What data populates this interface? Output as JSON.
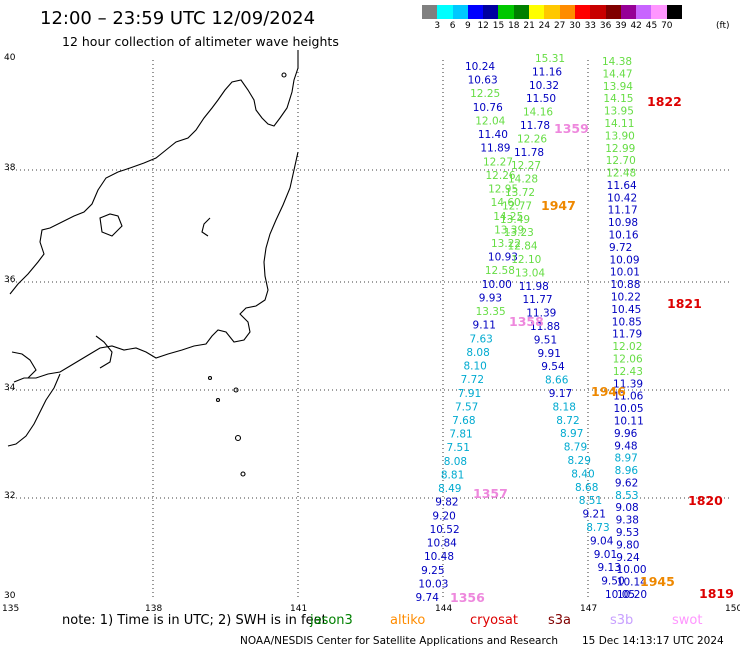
{
  "title": "12:00 – 23:59 UTC 12/09/2024",
  "subtitle": "12 hour collection of altimeter wave heights",
  "colorbar": {
    "colors": [
      "#808080",
      "#00ffff",
      "#00c8ff",
      "#0000ff",
      "#0000a0",
      "#00c800",
      "#008000",
      "#ffff00",
      "#ffc800",
      "#ff8c00",
      "#ff0000",
      "#c80000",
      "#800000",
      "#960096",
      "#c864ff",
      "#ff96ff",
      "#000000"
    ],
    "ticks": [
      "3",
      "6",
      "9",
      "12",
      "15",
      "18",
      "21",
      "24",
      "27",
      "30",
      "33",
      "36",
      "39",
      "42",
      "45",
      "70"
    ],
    "unit": "(ft)"
  },
  "map": {
    "lat_labels": [
      "40",
      "38",
      "36",
      "34",
      "32",
      "30"
    ],
    "lon_labels": [
      "135",
      "138",
      "141",
      "144",
      "147",
      "150"
    ]
  },
  "tracks": [
    {
      "name": "jason3",
      "color": "#00aa00",
      "obs": [
        {
          "v": "10.24",
          "c": "#0000c0"
        },
        {
          "v": "10.63",
          "c": "#0000c0"
        },
        {
          "v": "12.25",
          "c": "#66dd44"
        },
        {
          "v": "10.76",
          "c": "#0000c0"
        },
        {
          "v": "12.04",
          "c": "#66dd44"
        },
        {
          "v": "11.40",
          "c": "#0000c0"
        },
        {
          "v": "11.89",
          "c": "#0000c0"
        },
        {
          "v": "12.27",
          "c": "#66dd44"
        },
        {
          "v": "12.26",
          "c": "#66dd44"
        },
        {
          "v": "12.95",
          "c": "#66dd44"
        },
        {
          "v": "14.60",
          "c": "#66dd44"
        },
        {
          "v": "14.25",
          "c": "#66dd44"
        },
        {
          "v": "13.39",
          "c": "#66dd44"
        },
        {
          "v": "13.22",
          "c": "#66dd44"
        },
        {
          "v": "10.93",
          "c": "#0000c0"
        },
        {
          "v": "12.58",
          "c": "#66dd44"
        },
        {
          "v": "10.00",
          "c": "#0000c0"
        },
        {
          "v": "9.93",
          "c": "#0000c0"
        },
        {
          "v": "13.35",
          "c": "#66dd44"
        },
        {
          "v": "9.11",
          "c": "#0000c0"
        },
        {
          "v": "7.63",
          "c": "#00aad0"
        },
        {
          "v": "8.08",
          "c": "#00aad0"
        },
        {
          "v": "8.10",
          "c": "#00aad0"
        },
        {
          "v": "7.72",
          "c": "#00aad0"
        },
        {
          "v": "7.91",
          "c": "#00aad0"
        },
        {
          "v": "7.57",
          "c": "#00aad0"
        },
        {
          "v": "7.68",
          "c": "#00aad0"
        },
        {
          "v": "7.81",
          "c": "#00aad0"
        },
        {
          "v": "7.51",
          "c": "#00aad0"
        },
        {
          "v": "8.08",
          "c": "#00aad0"
        },
        {
          "v": "8.81",
          "c": "#00aad0"
        },
        {
          "v": "8.49",
          "c": "#00aad0"
        },
        {
          "v": "9.82",
          "c": "#0000c0"
        },
        {
          "v": "9.20",
          "c": "#0000c0"
        },
        {
          "v": "10.52",
          "c": "#0000c0"
        },
        {
          "v": "10.84",
          "c": "#0000c0"
        },
        {
          "v": "10.48",
          "c": "#0000c0"
        },
        {
          "v": "9.25",
          "c": "#0000c0"
        },
        {
          "v": "10.03",
          "c": "#0000c0"
        },
        {
          "v": "9.74",
          "c": "#0000c0"
        }
      ]
    },
    {
      "name": "altika",
      "color": "#00aa00",
      "obs": [
        {
          "v": "15.31",
          "c": "#66dd44"
        },
        {
          "v": "11.16",
          "c": "#0000c0"
        },
        {
          "v": "10.32",
          "c": "#0000c0"
        },
        {
          "v": "11.50",
          "c": "#0000c0"
        },
        {
          "v": "14.16",
          "c": "#66dd44"
        },
        {
          "v": "11.78",
          "c": "#0000c0"
        },
        {
          "v": "12.26",
          "c": "#66dd44"
        },
        {
          "v": "11.78",
          "c": "#0000c0"
        },
        {
          "v": "12.27",
          "c": "#66dd44"
        },
        {
          "v": "14.28",
          "c": "#66dd44"
        },
        {
          "v": "13.72",
          "c": "#66dd44"
        },
        {
          "v": "12.77",
          "c": "#66dd44"
        },
        {
          "v": "13.49",
          "c": "#66dd44"
        },
        {
          "v": "13.23",
          "c": "#66dd44"
        },
        {
          "v": "12.84",
          "c": "#66dd44"
        },
        {
          "v": "12.10",
          "c": "#66dd44"
        },
        {
          "v": "13.04",
          "c": "#66dd44"
        },
        {
          "v": "11.98",
          "c": "#0000c0"
        },
        {
          "v": "11.77",
          "c": "#0000c0"
        },
        {
          "v": "11.39",
          "c": "#0000c0"
        },
        {
          "v": "11.88",
          "c": "#0000c0"
        },
        {
          "v": "9.51",
          "c": "#0000c0"
        },
        {
          "v": "9.91",
          "c": "#0000c0"
        },
        {
          "v": "9.54",
          "c": "#0000c0"
        },
        {
          "v": "8.66",
          "c": "#00aad0"
        },
        {
          "v": "9.17",
          "c": "#0000c0"
        },
        {
          "v": "8.18",
          "c": "#00aad0"
        },
        {
          "v": "8.72",
          "c": "#00aad0"
        },
        {
          "v": "8.97",
          "c": "#00aad0"
        },
        {
          "v": "8.79",
          "c": "#00aad0"
        },
        {
          "v": "8.29",
          "c": "#00aad0"
        },
        {
          "v": "8.40",
          "c": "#00aad0"
        },
        {
          "v": "8.68",
          "c": "#00aad0"
        },
        {
          "v": "8.51",
          "c": "#00aad0"
        },
        {
          "v": "9.21",
          "c": "#0000c0"
        },
        {
          "v": "8.73",
          "c": "#00aad0"
        },
        {
          "v": "9.04",
          "c": "#0000c0"
        },
        {
          "v": "9.01",
          "c": "#0000c0"
        },
        {
          "v": "9.13",
          "c": "#0000c0"
        },
        {
          "v": "9.50",
          "c": "#0000c0"
        },
        {
          "v": "10.05",
          "c": "#0000c0"
        }
      ]
    },
    {
      "name": "cryosat",
      "color": "#00aa00",
      "obs": [
        {
          "v": "14.38",
          "c": "#66dd44"
        },
        {
          "v": "14.47",
          "c": "#66dd44"
        },
        {
          "v": "13.94",
          "c": "#66dd44"
        },
        {
          "v": "14.15",
          "c": "#66dd44"
        },
        {
          "v": "13.95",
          "c": "#66dd44"
        },
        {
          "v": "14.11",
          "c": "#66dd44"
        },
        {
          "v": "13.90",
          "c": "#66dd44"
        },
        {
          "v": "12.99",
          "c": "#66dd44"
        },
        {
          "v": "12.70",
          "c": "#66dd44"
        },
        {
          "v": "12.48",
          "c": "#66dd44"
        },
        {
          "v": "11.64",
          "c": "#0000c0"
        },
        {
          "v": "10.42",
          "c": "#0000c0"
        },
        {
          "v": "11.17",
          "c": "#0000c0"
        },
        {
          "v": "10.98",
          "c": "#0000c0"
        },
        {
          "v": "10.16",
          "c": "#0000c0"
        },
        {
          "v": "9.72",
          "c": "#0000c0"
        },
        {
          "v": "10.09",
          "c": "#0000c0"
        },
        {
          "v": "10.01",
          "c": "#0000c0"
        },
        {
          "v": "10.88",
          "c": "#0000c0"
        },
        {
          "v": "10.22",
          "c": "#0000c0"
        },
        {
          "v": "10.45",
          "c": "#0000c0"
        },
        {
          "v": "10.85",
          "c": "#0000c0"
        },
        {
          "v": "11.79",
          "c": "#0000c0"
        },
        {
          "v": "12.02",
          "c": "#66dd44"
        },
        {
          "v": "12.06",
          "c": "#66dd44"
        },
        {
          "v": "12.43",
          "c": "#66dd44"
        },
        {
          "v": "11.39",
          "c": "#0000c0"
        },
        {
          "v": "11.06",
          "c": "#0000c0"
        },
        {
          "v": "10.05",
          "c": "#0000c0"
        },
        {
          "v": "10.11",
          "c": "#0000c0"
        },
        {
          "v": "9.96",
          "c": "#0000c0"
        },
        {
          "v": "9.48",
          "c": "#0000c0"
        },
        {
          "v": "8.97",
          "c": "#00aad0"
        },
        {
          "v": "8.96",
          "c": "#00aad0"
        },
        {
          "v": "9.62",
          "c": "#0000c0"
        },
        {
          "v": "8.53",
          "c": "#00aad0"
        },
        {
          "v": "9.08",
          "c": "#0000c0"
        },
        {
          "v": "9.38",
          "c": "#0000c0"
        },
        {
          "v": "9.53",
          "c": "#0000c0"
        },
        {
          "v": "9.80",
          "c": "#0000c0"
        },
        {
          "v": "9.24",
          "c": "#0000c0"
        },
        {
          "v": "10.00",
          "c": "#0000c0"
        },
        {
          "v": "10.14",
          "c": "#0000c0"
        },
        {
          "v": "10.20",
          "c": "#0000c0"
        }
      ]
    }
  ],
  "time_labels": [
    {
      "t": "1822",
      "c": "#dd0000"
    },
    {
      "t": "1359",
      "c": "#ee88dd"
    },
    {
      "t": "1947",
      "c": "#ee8800"
    },
    {
      "t": "1821",
      "c": "#dd0000"
    },
    {
      "t": "1358",
      "c": "#ee88dd"
    },
    {
      "t": "1946",
      "c": "#ee8800"
    },
    {
      "t": "1357",
      "c": "#ee88dd"
    },
    {
      "t": "1820",
      "c": "#dd0000"
    },
    {
      "t": "1356",
      "c": "#ee88dd"
    },
    {
      "t": "1945",
      "c": "#ee8800"
    },
    {
      "t": "1819",
      "c": "#dd0000"
    }
  ],
  "note": "note:  1) Time is in UTC; 2) SWH is in feet",
  "legend": [
    {
      "label": "jason3",
      "color": "#008000"
    },
    {
      "label": "altiko",
      "color": "#ff8c00"
    },
    {
      "label": "cryosat",
      "color": "#dd0000"
    },
    {
      "label": "s3a",
      "color": "#800000"
    },
    {
      "label": "s3b",
      "color": "#c8a0ff"
    },
    {
      "label": "swot",
      "color": "#ff96ff"
    }
  ],
  "credit": "NOAA/NESDIS Center for Satellite Applications and Research",
  "timestamp": "15 Dec 14:13:17 UTC 2024"
}
